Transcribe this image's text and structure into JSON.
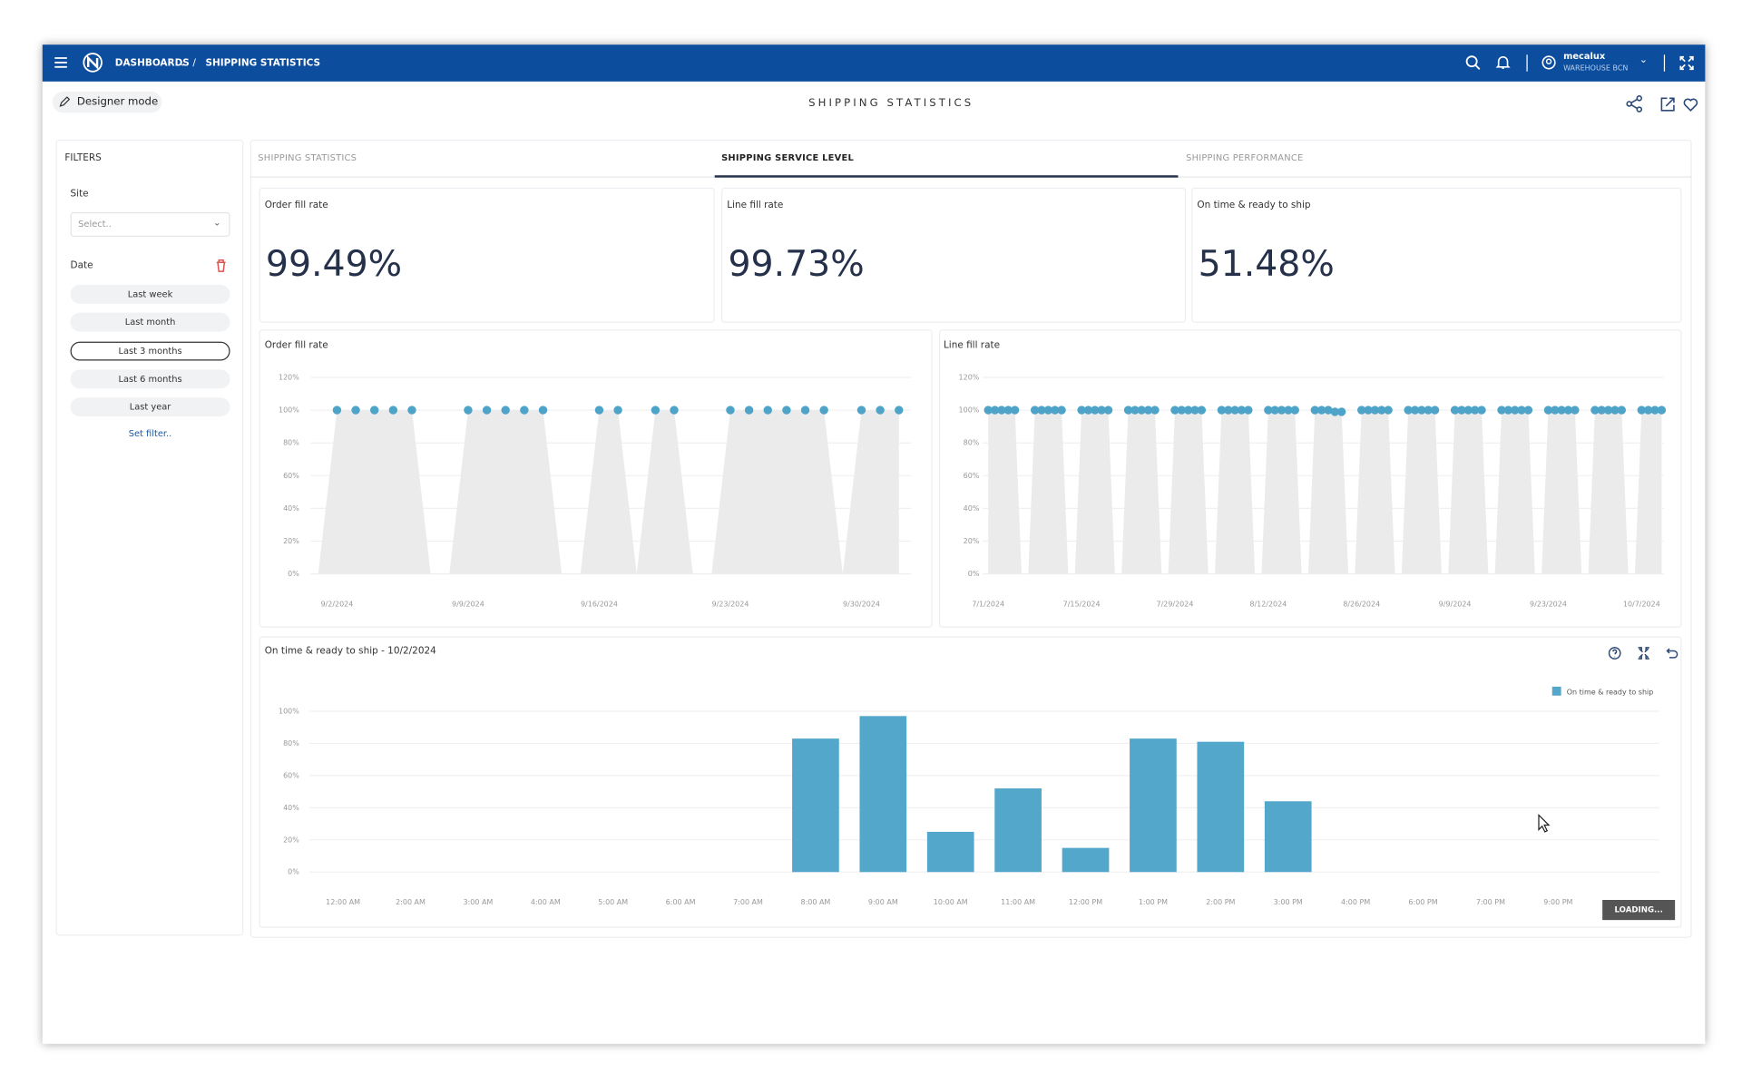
{
  "nav": {
    "menu": "DASHBOARDS",
    "current": "SHIPPING STATISTICS",
    "user": "mecalux",
    "location": "WAREHOUSE BCN"
  },
  "toolbar": {
    "mode": "Designer mode",
    "title": "SHIPPING STATISTICS"
  },
  "filters": {
    "title": "FILTERS",
    "site_label": "Site",
    "site_placeholder": "Select..",
    "date_label": "Date",
    "date_options": [
      "Last week",
      "Last month",
      "Last 3 months",
      "Last 6 months",
      "Last year"
    ],
    "selected": 2,
    "set_filter": "Set filter.."
  },
  "tabs": {
    "items": [
      "SHIPPING STATISTICS",
      "SHIPPING SERVICE LEVEL",
      "SHIPPING PERFORMANCE"
    ],
    "active": 1
  },
  "kpis": [
    {
      "label": "Order fill rate",
      "value": "99.49%"
    },
    {
      "label": "Line fill rate",
      "value": "99.73%"
    },
    {
      "label": "On time & ready to ship",
      "value": "51.48%"
    }
  ],
  "loading": "LOADING...",
  "chart_data": [
    {
      "type": "line",
      "title": "Order fill rate",
      "color": "#4ea3c9",
      "area_color": "#ebebeb",
      "grid": true,
      "x": [
        "9/1/2024",
        "9/2/2024",
        "9/3/2024",
        "9/4/2024",
        "9/5/2024",
        "9/6/2024",
        "9/7/2024",
        "9/8/2024",
        "9/9/2024",
        "9/10/2024",
        "9/11/2024",
        "9/12/2024",
        "9/13/2024",
        "9/14/2024",
        "9/15/2024",
        "9/16/2024",
        "9/17/2024",
        "9/18/2024",
        "9/19/2024",
        "9/20/2024",
        "9/21/2024",
        "9/22/2024",
        "9/23/2024",
        "9/24/2024",
        "9/25/2024",
        "9/26/2024",
        "9/27/2024",
        "9/28/2024",
        "9/29/2024",
        "9/30/2024",
        "10/1/2024",
        "10/2/2024"
      ],
      "values": [
        0,
        100,
        100,
        100,
        100,
        100,
        0,
        0,
        100,
        100,
        100,
        100,
        100,
        0,
        0,
        100,
        100,
        0,
        100,
        100,
        0,
        0,
        100,
        100,
        100,
        100,
        100,
        100,
        0,
        100,
        100,
        100
      ],
      "xticks": [
        "9/2/2024",
        "9/9/2024",
        "9/16/2024",
        "9/23/2024",
        "9/30/2024"
      ],
      "ylim": [
        0,
        120
      ],
      "yticks": [
        {
          "value": 0,
          "label": "0%"
        },
        {
          "value": 20,
          "label": "20%"
        },
        {
          "value": 40,
          "label": "40%"
        },
        {
          "value": 60,
          "label": "60%"
        },
        {
          "value": 80,
          "label": "80%"
        },
        {
          "value": 100,
          "label": "100%"
        },
        {
          "value": 120,
          "label": "120%"
        }
      ]
    },
    {
      "type": "line",
      "title": "Line fill rate",
      "color": "#4ea3c9",
      "area_color": "#ebebeb",
      "grid": true,
      "x": [
        "7/1/2024",
        "7/2/2024",
        "7/3/2024",
        "7/4/2024",
        "7/5/2024",
        "7/6/2024",
        "7/7/2024",
        "7/8/2024",
        "7/9/2024",
        "7/10/2024",
        "7/11/2024",
        "7/12/2024",
        "7/13/2024",
        "7/14/2024",
        "7/15/2024",
        "7/16/2024",
        "7/17/2024",
        "7/18/2024",
        "7/19/2024",
        "7/20/2024",
        "7/21/2024",
        "7/22/2024",
        "7/23/2024",
        "7/24/2024",
        "7/25/2024",
        "7/26/2024",
        "7/27/2024",
        "7/28/2024",
        "7/29/2024",
        "7/30/2024",
        "7/31/2024",
        "8/1/2024",
        "8/2/2024",
        "8/3/2024",
        "8/4/2024",
        "8/5/2024",
        "8/6/2024",
        "8/7/2024",
        "8/8/2024",
        "8/9/2024",
        "8/10/2024",
        "8/11/2024",
        "8/12/2024",
        "8/13/2024",
        "8/14/2024",
        "8/15/2024",
        "8/16/2024",
        "8/17/2024",
        "8/18/2024",
        "8/19/2024",
        "8/20/2024",
        "8/21/2024",
        "8/22/2024",
        "8/23/2024",
        "8/24/2024",
        "8/25/2024",
        "8/26/2024",
        "8/27/2024",
        "8/28/2024",
        "8/29/2024",
        "8/30/2024",
        "8/31/2024",
        "9/1/2024",
        "9/2/2024",
        "9/3/2024",
        "9/4/2024",
        "9/5/2024",
        "9/6/2024",
        "9/7/2024",
        "9/8/2024",
        "9/9/2024",
        "9/10/2024",
        "9/11/2024",
        "9/12/2024",
        "9/13/2024",
        "9/14/2024",
        "9/15/2024",
        "9/16/2024",
        "9/17/2024",
        "9/18/2024",
        "9/19/2024",
        "9/20/2024",
        "9/21/2024",
        "9/22/2024",
        "9/23/2024",
        "9/24/2024",
        "9/25/2024",
        "9/26/2024",
        "9/27/2024",
        "9/28/2024",
        "9/29/2024",
        "9/30/2024",
        "10/1/2024",
        "10/2/2024",
        "10/3/2024",
        "10/4/2024",
        "10/5/2024",
        "10/6/2024",
        "10/7/2024",
        "10/8/2024",
        "10/9/2024",
        "10/10/2024"
      ],
      "values": [
        100,
        100,
        100,
        100,
        100,
        0,
        0,
        100,
        100,
        100,
        100,
        100,
        0,
        0,
        100,
        100,
        100,
        100,
        100,
        0,
        0,
        100,
        100,
        100,
        100,
        100,
        0,
        0,
        100,
        100,
        100,
        100,
        100,
        0,
        0,
        100,
        100,
        100,
        100,
        100,
        0,
        0,
        100,
        100,
        100,
        100,
        100,
        0,
        0,
        100,
        100,
        100,
        99,
        99,
        0,
        0,
        100,
        100,
        100,
        100,
        100,
        0,
        0,
        100,
        100,
        100,
        100,
        100,
        0,
        0,
        100,
        100,
        100,
        100,
        100,
        0,
        0,
        100,
        100,
        100,
        100,
        100,
        0,
        0,
        100,
        100,
        100,
        100,
        100,
        0,
        0,
        100,
        100,
        100,
        100,
        100,
        0,
        0,
        100,
        100,
        100,
        100
      ],
      "xticks": [
        "7/1/2024",
        "7/15/2024",
        "7/29/2024",
        "8/12/2024",
        "8/26/2024",
        "9/9/2024",
        "9/23/2024",
        "10/7/2024"
      ],
      "ylim": [
        0,
        120
      ],
      "yticks": [
        {
          "value": 0,
          "label": "0%"
        },
        {
          "value": 20,
          "label": "20%"
        },
        {
          "value": 40,
          "label": "40%"
        },
        {
          "value": 60,
          "label": "60%"
        },
        {
          "value": 80,
          "label": "80%"
        },
        {
          "value": 100,
          "label": "100%"
        },
        {
          "value": 120,
          "label": "120%"
        }
      ]
    },
    {
      "type": "bar",
      "title": "On time & ready to ship - 10/2/2024",
      "legend": "top-right",
      "grid": true,
      "categories": [
        "12:00 AM",
        "2:00 AM",
        "3:00 AM",
        "4:00 AM",
        "5:00 AM",
        "6:00 AM",
        "7:00 AM",
        "8:00 AM",
        "9:00 AM",
        "10:00 AM",
        "11:00 AM",
        "12:00 PM",
        "1:00 PM",
        "2:00 PM",
        "3:00 PM",
        "4:00 PM",
        "6:00 PM",
        "7:00 PM",
        "9:00 PM",
        null
      ],
      "series": [
        {
          "name": "On time & ready to ship",
          "color": "#52a7cb",
          "values": [
            0,
            0,
            0,
            0,
            0,
            0,
            0,
            83,
            97,
            25,
            52,
            15,
            83,
            81,
            44,
            0,
            0,
            0,
            0,
            0
          ]
        }
      ],
      "ylim": [
        0,
        100
      ],
      "yticks": [
        {
          "value": 0,
          "label": "0%"
        },
        {
          "value": 20,
          "label": "20%"
        },
        {
          "value": 40,
          "label": "40%"
        },
        {
          "value": 60,
          "label": "60%"
        },
        {
          "value": 80,
          "label": "80%"
        },
        {
          "value": 100,
          "label": "100%"
        }
      ]
    }
  ]
}
